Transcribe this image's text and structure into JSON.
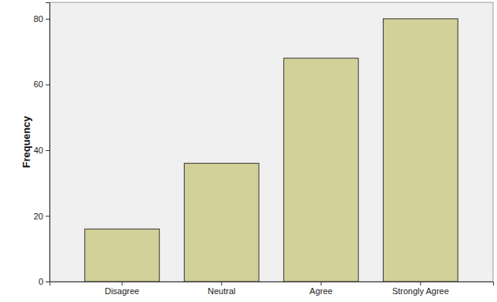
{
  "chart_data": {
    "type": "bar",
    "y_label": "Frequency",
    "categories": [
      "Disagree",
      "Neutral",
      "Agree",
      "Strongly Agree"
    ],
    "values": [
      16,
      36,
      68,
      80
    ],
    "color": "#d3d19a",
    "ylim": [
      0,
      85
    ],
    "yticks": [
      0,
      20,
      40,
      60,
      80
    ],
    "grid": false
  }
}
